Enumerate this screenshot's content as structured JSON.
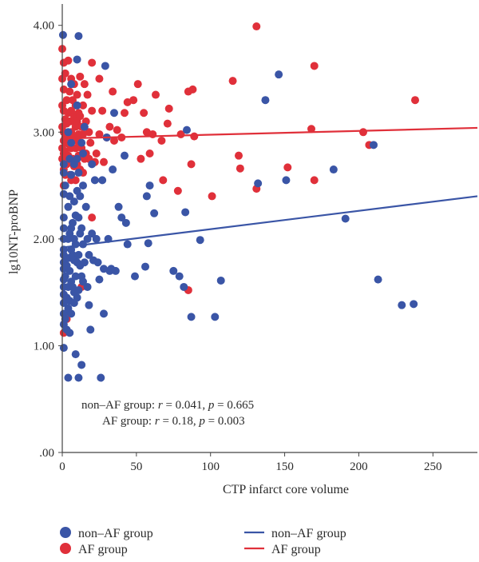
{
  "chart_data": {
    "type": "scatter",
    "xlabel": "CTP infarct core volume",
    "ylabel": "lg10NT-proBNP",
    "xlim": [
      0,
      280
    ],
    "ylim": [
      0,
      4.2
    ],
    "x_ticks": [
      0,
      50,
      100,
      150,
      200,
      250
    ],
    "x_tick_labels": [
      "0",
      "50",
      "100",
      "150",
      "200",
      "250"
    ],
    "y_ticks": [
      0,
      1,
      2,
      3,
      4
    ],
    "y_tick_labels": [
      ".00",
      "1.00",
      "2.00",
      "3.00",
      "4.00"
    ],
    "grid": false,
    "legend_position": "bottom",
    "annotations": {
      "non_af_name": "non–AF group",
      "non_af_r_label": "r",
      "non_af_r": " = 0.041, ",
      "non_af_p_label": "p",
      "non_af_p": " = 0.665",
      "af_name": "AF group",
      "af_r_label": "r",
      "af_r": " = 0.18, ",
      "af_p_label": "p",
      "af_p": " = 0.003"
    },
    "legend": {
      "points": [
        {
          "label": "non–AF group",
          "color": "#3a55a6"
        },
        {
          "label": "AF group",
          "color": "#e0303a"
        }
      ],
      "lines": [
        {
          "label": "non–AF group",
          "color": "#3a55a6"
        },
        {
          "label": "AF group",
          "color": "#e0303a"
        }
      ]
    },
    "series": [
      {
        "name": "non–AF group",
        "color": "#3a55a6",
        "fit_line": {
          "x0": 0,
          "y0": 1.92,
          "x1": 280,
          "y1": 2.4
        },
        "points": [
          [
            0.5,
            3.91
          ],
          [
            1,
            2.7
          ],
          [
            1,
            2.62
          ],
          [
            1,
            2.42
          ],
          [
            1,
            2.2
          ],
          [
            1,
            2.1
          ],
          [
            1,
            2.0
          ],
          [
            1,
            1.9
          ],
          [
            1,
            1.85
          ],
          [
            1,
            1.78
          ],
          [
            1,
            1.72
          ],
          [
            1,
            1.62
          ],
          [
            1,
            1.55
          ],
          [
            1,
            1.48
          ],
          [
            1,
            1.4
          ],
          [
            1,
            1.3
          ],
          [
            1,
            1.2
          ],
          [
            1,
            0.98
          ],
          [
            2,
            2.5
          ],
          [
            2,
            1.65
          ],
          [
            2,
            1.25
          ],
          [
            3,
            1.75
          ],
          [
            3,
            1.45
          ],
          [
            3,
            1.15
          ],
          [
            4,
            3.0
          ],
          [
            4,
            2.3
          ],
          [
            4,
            2.0
          ],
          [
            4,
            1.82
          ],
          [
            4,
            1.55
          ],
          [
            4,
            1.35
          ],
          [
            4,
            0.7
          ],
          [
            5,
            2.75
          ],
          [
            5,
            2.4
          ],
          [
            5,
            2.05
          ],
          [
            5,
            1.7
          ],
          [
            5,
            1.42
          ],
          [
            5,
            1.12
          ],
          [
            6,
            3.45
          ],
          [
            6,
            2.9
          ],
          [
            6,
            2.6
          ],
          [
            6,
            2.1
          ],
          [
            6,
            1.9
          ],
          [
            6,
            1.6
          ],
          [
            6,
            1.3
          ],
          [
            7,
            2.15
          ],
          [
            7,
            1.85
          ],
          [
            7,
            1.55
          ],
          [
            8,
            2.7
          ],
          [
            8,
            2.35
          ],
          [
            8,
            2.0
          ],
          [
            8,
            1.8
          ],
          [
            8,
            1.5
          ],
          [
            8,
            1.4
          ],
          [
            9,
            2.22
          ],
          [
            9,
            1.95
          ],
          [
            9,
            1.65
          ],
          [
            9,
            0.92
          ],
          [
            10,
            3.68
          ],
          [
            10,
            3.25
          ],
          [
            10,
            2.75
          ],
          [
            10,
            2.45
          ],
          [
            10,
            1.78
          ],
          [
            10,
            1.45
          ],
          [
            11,
            3.9
          ],
          [
            11,
            2.62
          ],
          [
            11,
            2.2
          ],
          [
            11,
            1.85
          ],
          [
            11,
            1.52
          ],
          [
            11,
            0.7
          ],
          [
            12,
            2.4
          ],
          [
            12,
            2.05
          ],
          [
            12,
            1.75
          ],
          [
            13,
            2.9
          ],
          [
            13,
            2.1
          ],
          [
            13,
            1.65
          ],
          [
            13,
            0.82
          ],
          [
            14,
            2.8
          ],
          [
            14,
            2.5
          ],
          [
            14,
            1.95
          ],
          [
            14,
            1.6
          ],
          [
            15,
            3.05
          ],
          [
            15,
            1.78
          ],
          [
            16,
            2.3
          ],
          [
            17,
            2.0
          ],
          [
            17,
            1.55
          ],
          [
            18,
            1.85
          ],
          [
            18,
            1.38
          ],
          [
            19,
            1.15
          ],
          [
            20,
            2.7
          ],
          [
            20,
            2.05
          ],
          [
            21,
            1.8
          ],
          [
            22,
            2.55
          ],
          [
            23,
            2.0
          ],
          [
            24,
            1.78
          ],
          [
            25,
            1.62
          ],
          [
            26,
            0.7
          ],
          [
            27,
            2.55
          ],
          [
            28,
            1.72
          ],
          [
            28,
            1.3
          ],
          [
            29,
            3.62
          ],
          [
            30,
            2.95
          ],
          [
            31,
            2.0
          ],
          [
            32,
            1.7
          ],
          [
            33,
            1.72
          ],
          [
            34,
            2.65
          ],
          [
            35,
            3.18
          ],
          [
            36,
            1.7
          ],
          [
            38,
            2.3
          ],
          [
            40,
            2.2
          ],
          [
            42,
            2.78
          ],
          [
            43,
            2.15
          ],
          [
            44,
            1.95
          ],
          [
            49,
            1.65
          ],
          [
            56,
            1.74
          ],
          [
            57,
            2.4
          ],
          [
            58,
            1.96
          ],
          [
            59,
            2.5
          ],
          [
            62,
            2.24
          ],
          [
            75,
            1.7
          ],
          [
            79,
            1.65
          ],
          [
            82,
            1.55
          ],
          [
            83,
            2.25
          ],
          [
            84,
            3.02
          ],
          [
            87,
            1.27
          ],
          [
            93,
            1.99
          ],
          [
            103,
            1.27
          ],
          [
            107,
            1.61
          ],
          [
            132,
            2.52
          ],
          [
            137,
            3.3
          ],
          [
            146,
            3.54
          ],
          [
            151,
            2.55
          ],
          [
            183,
            2.65
          ],
          [
            191,
            2.19
          ],
          [
            210,
            2.88
          ],
          [
            213,
            1.62
          ],
          [
            229,
            1.38
          ],
          [
            237,
            1.39
          ]
        ]
      },
      {
        "name": "AF group",
        "color": "#e0303a",
        "fit_line": {
          "x0": 0,
          "y0": 2.94,
          "x1": 280,
          "y1": 3.04
        },
        "points": [
          [
            0,
            3.78
          ],
          [
            0,
            3.5
          ],
          [
            0,
            3.25
          ],
          [
            0,
            3.05
          ],
          [
            0,
            2.85
          ],
          [
            0,
            2.75
          ],
          [
            1,
            3.65
          ],
          [
            1,
            3.4
          ],
          [
            1,
            3.2
          ],
          [
            1,
            3.0
          ],
          [
            1,
            2.92
          ],
          [
            1,
            2.8
          ],
          [
            1,
            2.65
          ],
          [
            1,
            2.5
          ],
          [
            1,
            1.12
          ],
          [
            2,
            3.55
          ],
          [
            2,
            3.12
          ],
          [
            2,
            2.95
          ],
          [
            2,
            2.82
          ],
          [
            2,
            2.6
          ],
          [
            3,
            3.3
          ],
          [
            3,
            3.08
          ],
          [
            3,
            2.9
          ],
          [
            3,
            2.7
          ],
          [
            3,
            1.25
          ],
          [
            4,
            3.67
          ],
          [
            4,
            3.18
          ],
          [
            4,
            2.97
          ],
          [
            4,
            2.78
          ],
          [
            5,
            3.38
          ],
          [
            5,
            3.1
          ],
          [
            5,
            2.88
          ],
          [
            5,
            2.6
          ],
          [
            6,
            3.5
          ],
          [
            6,
            3.2
          ],
          [
            6,
            3.0
          ],
          [
            6,
            2.85
          ],
          [
            6,
            2.55
          ],
          [
            7,
            3.3
          ],
          [
            7,
            3.1
          ],
          [
            7,
            2.92
          ],
          [
            7,
            2.75
          ],
          [
            8,
            3.45
          ],
          [
            8,
            3.15
          ],
          [
            8,
            2.95
          ],
          [
            8,
            2.68
          ],
          [
            9,
            3.25
          ],
          [
            9,
            3.05
          ],
          [
            9,
            2.85
          ],
          [
            9,
            2.55
          ],
          [
            10,
            3.35
          ],
          [
            10,
            3.1
          ],
          [
            10,
            2.92
          ],
          [
            10,
            2.7
          ],
          [
            11,
            3.18
          ],
          [
            11,
            2.98
          ],
          [
            11,
            2.78
          ],
          [
            12,
            3.52
          ],
          [
            12,
            3.15
          ],
          [
            12,
            2.9
          ],
          [
            12,
            2.65
          ],
          [
            13,
            3.05
          ],
          [
            13,
            2.85
          ],
          [
            13,
            1.55
          ],
          [
            14,
            3.25
          ],
          [
            14,
            2.98
          ],
          [
            14,
            2.62
          ],
          [
            15,
            3.45
          ],
          [
            15,
            2.75
          ],
          [
            16,
            3.1
          ],
          [
            16,
            2.8
          ],
          [
            17,
            3.35
          ],
          [
            18,
            3.0
          ],
          [
            18,
            2.75
          ],
          [
            19,
            2.9
          ],
          [
            20,
            3.65
          ],
          [
            20,
            3.2
          ],
          [
            20,
            2.2
          ],
          [
            22,
            2.72
          ],
          [
            23,
            2.8
          ],
          [
            25,
            3.5
          ],
          [
            25,
            2.98
          ],
          [
            27,
            3.2
          ],
          [
            28,
            2.72
          ],
          [
            30,
            2.95
          ],
          [
            32,
            3.05
          ],
          [
            34,
            3.38
          ],
          [
            35,
            2.92
          ],
          [
            37,
            3.02
          ],
          [
            40,
            2.95
          ],
          [
            42,
            3.18
          ],
          [
            44,
            3.28
          ],
          [
            48,
            3.3
          ],
          [
            51,
            3.45
          ],
          [
            53,
            2.75
          ],
          [
            55,
            3.18
          ],
          [
            57,
            3.0
          ],
          [
            59,
            2.8
          ],
          [
            61,
            2.98
          ],
          [
            63,
            3.35
          ],
          [
            67,
            2.92
          ],
          [
            68,
            2.55
          ],
          [
            71,
            3.08
          ],
          [
            72,
            3.22
          ],
          [
            78,
            2.45
          ],
          [
            80,
            2.98
          ],
          [
            85,
            3.38
          ],
          [
            85,
            1.52
          ],
          [
            87,
            2.7
          ],
          [
            88,
            3.4
          ],
          [
            89,
            2.96
          ],
          [
            101,
            2.4
          ],
          [
            115,
            3.48
          ],
          [
            119,
            2.78
          ],
          [
            120,
            2.66
          ],
          [
            131,
            3.99
          ],
          [
            131,
            2.47
          ],
          [
            152,
            2.67
          ],
          [
            168,
            3.03
          ],
          [
            170,
            2.55
          ],
          [
            170,
            3.62
          ],
          [
            203,
            3.0
          ],
          [
            207,
            2.88
          ],
          [
            238,
            3.3
          ]
        ]
      }
    ]
  }
}
